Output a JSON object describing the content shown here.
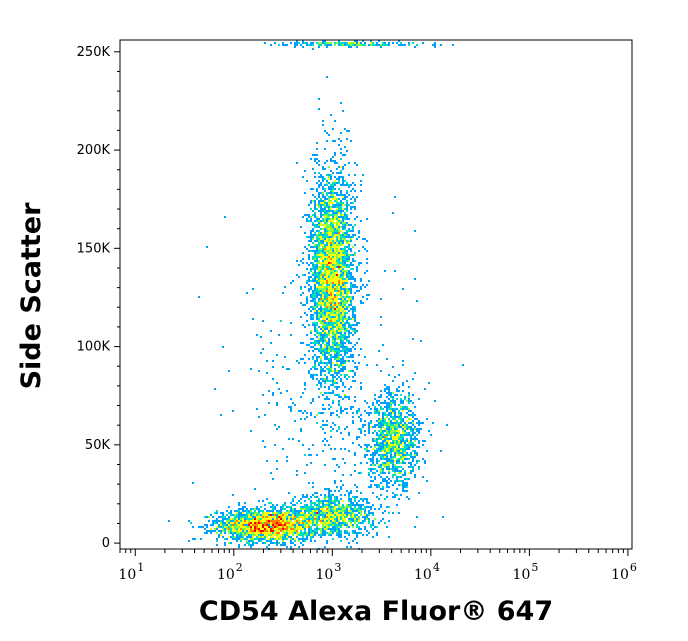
{
  "chart_data": {
    "type": "scatter",
    "subtype": "flow cytometry density dot plot",
    "title": "",
    "xlabel": "CD54 Alexa Fluor® 647",
    "ylabel": "Side Scatter",
    "x_scale": "log",
    "xlim": [
      7,
      1100000
    ],
    "ylim": [
      -3000,
      256000
    ],
    "x_ticks": [
      {
        "value": 10,
        "base": "10",
        "exp": "1"
      },
      {
        "value": 100,
        "base": "10",
        "exp": "2"
      },
      {
        "value": 1000,
        "base": "10",
        "exp": "3"
      },
      {
        "value": 10000,
        "base": "10",
        "exp": "4"
      },
      {
        "value": 100000,
        "base": "10",
        "exp": "5"
      },
      {
        "value": 1000000,
        "base": "10",
        "exp": "6"
      }
    ],
    "y_ticks": [
      {
        "value": 0,
        "label": "0"
      },
      {
        "value": 50000,
        "label": "50K"
      },
      {
        "value": 100000,
        "label": "100K"
      },
      {
        "value": 150000,
        "label": "150K"
      },
      {
        "value": 200000,
        "label": "200K"
      },
      {
        "value": 250000,
        "label": "250K"
      }
    ],
    "grid": false,
    "legend": "none",
    "color_scale": [
      "#0000ff",
      "#00a0ff",
      "#00e0c0",
      "#80ff40",
      "#ffff00",
      "#ff8000",
      "#ff0000"
    ],
    "populations": [
      {
        "x_center": 220,
        "y_center": 9000,
        "x_spread_decades": 0.25,
        "y_spread": 4000,
        "events": 2600
      },
      {
        "x_center": 1000,
        "y_center": 14000,
        "x_spread_decades": 0.22,
        "y_spread": 5000,
        "events": 1100
      },
      {
        "x_center": 1000,
        "y_center": 135000,
        "x_spread_decades": 0.11,
        "y_spread": 27000,
        "events": 4200
      },
      {
        "x_center": 4200,
        "y_center": 52000,
        "x_spread_decades": 0.13,
        "y_spread": 12000,
        "events": 1300
      },
      {
        "x_center": 1000,
        "y_center": 60000,
        "x_spread_decades": 0.45,
        "y_spread": 45000,
        "events": 450
      },
      {
        "x_center": 1500,
        "y_center": 254000,
        "x_spread_decades": 0.35,
        "y_spread": 600,
        "events": 200
      }
    ]
  }
}
